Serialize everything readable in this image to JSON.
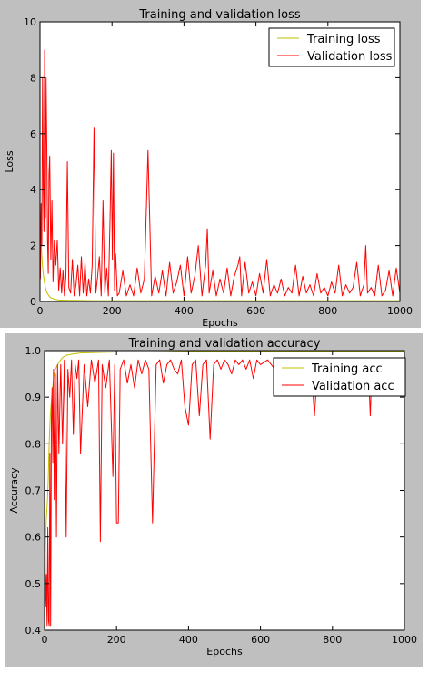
{
  "chart_data": [
    {
      "type": "line",
      "title": "Training and validation loss",
      "xlabel": "Epochs",
      "ylabel": "Loss",
      "xlim": [
        0,
        1000
      ],
      "ylim": [
        0,
        10
      ],
      "xticks": [
        0,
        200,
        400,
        600,
        800,
        1000
      ],
      "yticks": [
        0,
        2,
        4,
        6,
        8,
        10
      ],
      "legend": "top-right",
      "grid": false,
      "series": [
        {
          "name": "Training loss",
          "color": "#bfbf00",
          "x": [
            1,
            3,
            5,
            8,
            12,
            16,
            20,
            25,
            30,
            40,
            50,
            60,
            80,
            100,
            150,
            200,
            300,
            400,
            500,
            600,
            700,
            800,
            900,
            1000
          ],
          "y": [
            3.1,
            2.2,
            1.6,
            1.1,
            0.7,
            0.45,
            0.3,
            0.2,
            0.13,
            0.08,
            0.06,
            0.05,
            0.04,
            0.04,
            0.03,
            0.03,
            0.03,
            0.03,
            0.03,
            0.03,
            0.03,
            0.03,
            0.03,
            0.03
          ]
        },
        {
          "name": "Validation loss",
          "color": "#ff0000",
          "x": [
            1,
            3,
            5,
            7,
            9,
            11,
            13,
            15,
            17,
            19,
            21,
            23,
            25,
            27,
            30,
            33,
            36,
            40,
            44,
            48,
            52,
            56,
            60,
            64,
            68,
            72,
            76,
            80,
            85,
            90,
            95,
            100,
            105,
            110,
            115,
            120,
            125,
            130,
            135,
            140,
            145,
            150,
            155,
            160,
            165,
            170,
            175,
            180,
            185,
            190,
            195,
            198,
            201,
            204,
            207,
            210,
            215,
            220,
            230,
            240,
            250,
            260,
            270,
            280,
            290,
            300,
            310,
            320,
            330,
            340,
            350,
            360,
            370,
            380,
            390,
            400,
            410,
            420,
            430,
            440,
            450,
            460,
            465,
            470,
            480,
            490,
            500,
            510,
            520,
            530,
            540,
            550,
            555,
            560,
            570,
            580,
            590,
            600,
            610,
            620,
            630,
            640,
            650,
            660,
            670,
            680,
            690,
            700,
            710,
            720,
            730,
            740,
            750,
            760,
            770,
            780,
            790,
            800,
            810,
            820,
            830,
            840,
            850,
            860,
            870,
            880,
            890,
            900,
            905,
            910,
            920,
            930,
            940,
            950,
            960,
            970,
            980,
            990,
            1000
          ],
          "y": [
            0.8,
            3.5,
            2.0,
            8.0,
            4.0,
            2.5,
            9.0,
            3.0,
            8.0,
            5.5,
            2.2,
            1.0,
            4.5,
            5.2,
            1.5,
            3.6,
            0.7,
            2.2,
            1.3,
            2.2,
            0.4,
            1.2,
            0.3,
            1.1,
            0.2,
            0.9,
            5.0,
            0.5,
            0.3,
            1.5,
            0.2,
            0.6,
            1.3,
            0.2,
            1.6,
            0.3,
            1.4,
            0.2,
            0.8,
            0.3,
            1.3,
            6.2,
            0.3,
            0.9,
            1.6,
            0.2,
            3.6,
            0.3,
            1.2,
            0.2,
            3.2,
            5.4,
            1.5,
            5.3,
            0.4,
            1.7,
            0.2,
            0.3,
            1.1,
            0.2,
            0.6,
            0.2,
            1.2,
            0.3,
            0.8,
            5.4,
            0.2,
            0.9,
            0.3,
            1.1,
            0.2,
            1.4,
            0.3,
            0.7,
            1.3,
            0.2,
            1.6,
            0.3,
            0.9,
            2.0,
            0.2,
            1.3,
            2.6,
            0.3,
            1.1,
            0.2,
            0.8,
            0.3,
            1.2,
            0.2,
            0.9,
            1.3,
            1.6,
            0.2,
            1.4,
            0.3,
            0.7,
            0.2,
            1.0,
            0.3,
            1.5,
            0.2,
            0.6,
            0.3,
            0.8,
            0.2,
            0.5,
            0.3,
            1.3,
            0.2,
            0.9,
            0.3,
            0.6,
            0.2,
            1.0,
            0.3,
            0.5,
            0.2,
            0.7,
            0.3,
            1.3,
            0.2,
            0.6,
            0.3,
            0.5,
            1.4,
            0.2,
            0.6,
            2.0,
            0.3,
            0.5,
            0.2,
            1.3,
            0.2,
            0.4,
            1.1,
            0.2,
            1.2,
            0.3
          ]
        }
      ]
    },
    {
      "type": "line",
      "title": "Training and validation accuracy",
      "xlabel": "Epochs",
      "ylabel": "Accuracy",
      "xlim": [
        0,
        1000
      ],
      "ylim": [
        0.4,
        1.0
      ],
      "xticks": [
        0,
        200,
        400,
        600,
        800,
        1000
      ],
      "yticks": [
        0.4,
        0.5,
        0.6,
        0.7,
        0.8,
        0.9,
        1.0
      ],
      "legend": "top-right",
      "grid": false,
      "series": [
        {
          "name": "Training acc",
          "color": "#bfbf00",
          "x": [
            1,
            3,
            5,
            8,
            10,
            13,
            16,
            20,
            25,
            30,
            40,
            50,
            60,
            80,
            100,
            150,
            200,
            300,
            400,
            500,
            600,
            700,
            800,
            900,
            1000
          ],
          "y": [
            0.5,
            0.6,
            0.64,
            0.68,
            0.72,
            0.8,
            0.86,
            0.9,
            0.94,
            0.96,
            0.975,
            0.985,
            0.99,
            0.993,
            0.995,
            0.996,
            0.997,
            0.997,
            0.998,
            0.998,
            0.998,
            0.998,
            0.998,
            0.998,
            0.998
          ]
        },
        {
          "name": "Validation acc",
          "color": "#ff0000",
          "x": [
            1,
            3,
            5,
            7,
            9,
            11,
            13,
            15,
            17,
            19,
            21,
            23,
            25,
            27,
            30,
            33,
            36,
            40,
            45,
            50,
            55,
            60,
            65,
            70,
            75,
            80,
            85,
            90,
            95,
            100,
            110,
            120,
            130,
            140,
            150,
            155,
            160,
            170,
            180,
            190,
            195,
            200,
            205,
            210,
            220,
            230,
            240,
            250,
            260,
            270,
            280,
            290,
            300,
            310,
            320,
            330,
            340,
            350,
            360,
            370,
            380,
            390,
            400,
            410,
            420,
            430,
            440,
            450,
            460,
            470,
            480,
            490,
            500,
            510,
            520,
            530,
            540,
            550,
            560,
            570,
            580,
            590,
            600,
            620,
            640,
            660,
            680,
            700,
            720,
            740,
            750,
            760,
            780,
            800,
            820,
            840,
            860,
            880,
            900,
            905,
            910,
            920,
            940,
            960,
            980,
            1000
          ],
          "y": [
            0.58,
            0.45,
            0.52,
            0.41,
            0.62,
            0.42,
            0.41,
            0.78,
            0.41,
            0.85,
            0.92,
            0.76,
            0.96,
            0.68,
            0.95,
            0.6,
            0.97,
            0.78,
            0.97,
            0.8,
            0.98,
            0.6,
            0.96,
            0.9,
            0.98,
            0.82,
            0.97,
            0.94,
            0.98,
            0.78,
            0.97,
            0.88,
            0.98,
            0.93,
            0.98,
            0.59,
            0.97,
            0.92,
            0.98,
            0.73,
            0.97,
            0.63,
            0.63,
            0.96,
            0.98,
            0.93,
            0.97,
            0.92,
            0.98,
            0.95,
            0.98,
            0.96,
            0.63,
            0.97,
            0.98,
            0.93,
            0.97,
            0.98,
            0.96,
            0.95,
            0.98,
            0.88,
            0.84,
            0.97,
            0.98,
            0.86,
            0.97,
            0.98,
            0.81,
            0.97,
            0.98,
            0.96,
            0.98,
            0.97,
            0.95,
            0.98,
            0.97,
            0.98,
            0.96,
            0.98,
            0.94,
            0.98,
            0.97,
            0.98,
            0.96,
            0.98,
            0.97,
            0.98,
            0.96,
            0.98,
            0.86,
            0.98,
            0.97,
            0.98,
            0.96,
            0.98,
            0.97,
            0.98,
            0.96,
            0.86,
            0.98,
            0.97,
            0.98,
            0.97,
            0.98,
            0.92
          ]
        }
      ]
    }
  ]
}
